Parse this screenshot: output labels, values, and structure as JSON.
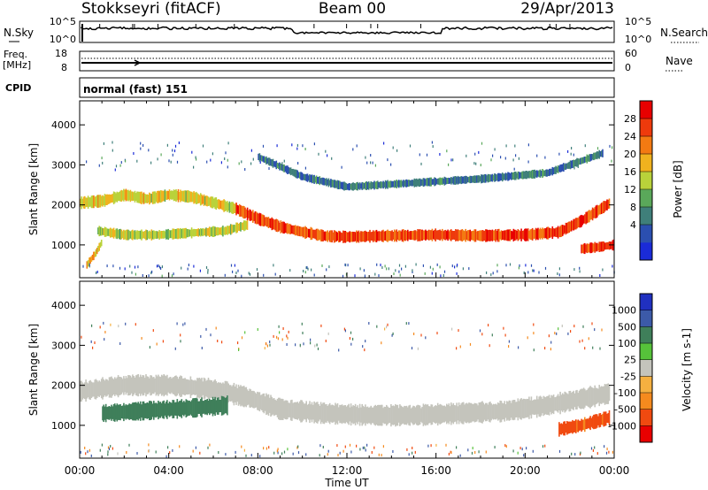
{
  "header": {
    "station": "Stokkseyri (fitACF)",
    "beam": "Beam 00",
    "date": "29/Apr/2013"
  },
  "status_panels": {
    "nsky_label": "N.Sky",
    "nsearch_label": "N.Search",
    "noise_ticks_left": [
      "10^5",
      "10^0"
    ],
    "noise_ticks_right": [
      "10^5",
      "10^0"
    ],
    "freq_label_line1": "Freq.",
    "freq_label_line2": "[MHz]",
    "freq_ticks": [
      "18",
      "8"
    ],
    "nave_label": "Nave",
    "nave_ticks": [
      "60",
      "0"
    ],
    "cpid_label": "CPID",
    "cpid_value": "normal (fast) 151"
  },
  "colors": {
    "power_scale": [
      "#1a2bd8",
      "#2b4fb0",
      "#3f7f7a",
      "#5aa85a",
      "#b9d23a",
      "#f0b21e",
      "#f37a12",
      "#ee3a0c",
      "#e80000"
    ],
    "velocity_scale": [
      "#2030c0",
      "#3c5aa8",
      "#3f7f5a",
      "#56c23a",
      "#c4c4bc",
      "#f5b040",
      "#f58a1e",
      "#f04a10",
      "#e80000"
    ],
    "ground_scatter": "#c4c4bc"
  },
  "chart_data": [
    {
      "type": "heatmap",
      "panel": "power",
      "ylabel": "Slant Range [km]",
      "xlabel": "Time UT",
      "xlim": [
        0,
        24
      ],
      "ylim": [
        180,
        4600
      ],
      "x_tick_labels": [
        "00:00",
        "04:00",
        "08:00",
        "12:00",
        "16:00",
        "20:00",
        "00:00"
      ],
      "y_tick_labels": [
        "1000",
        "2000",
        "3000",
        "4000"
      ],
      "colorbar_label": "Power [dB]",
      "colorbar_tick_labels": [
        "28",
        "24",
        "20",
        "16",
        "12",
        "8",
        "4"
      ],
      "colorbar_range": [
        0,
        32
      ],
      "bands": [
        {
          "t": [
            0.0,
            1.0,
            2.0,
            3.0,
            4.0,
            5.0,
            6.0,
            7.0
          ],
          "center_km": [
            2050,
            2100,
            2250,
            2150,
            2250,
            2200,
            2050,
            1900
          ],
          "width_km": 260,
          "level_db": 18
        },
        {
          "t": [
            0.8,
            2.0,
            3.5,
            5.0,
            6.5,
            7.5
          ],
          "center_km": [
            1350,
            1250,
            1250,
            1300,
            1350,
            1500
          ],
          "width_km": 220,
          "level_db": 16
        },
        {
          "t": [
            7.0,
            8.0,
            9.0,
            10.0,
            11.0,
            12.0,
            14.0,
            16.0,
            18.0,
            20.0,
            21.5,
            22.5,
            23.8
          ],
          "center_km": [
            1900,
            1650,
            1450,
            1320,
            1220,
            1200,
            1230,
            1250,
            1230,
            1250,
            1320,
            1600,
            2050
          ],
          "width_km": 260,
          "level_db": 26
        },
        {
          "t": [
            0.3,
            0.7,
            1.0
          ],
          "center_km": [
            500,
            800,
            1100
          ],
          "width_km": 180,
          "level_db": 20
        },
        {
          "t": [
            22.5,
            23.3,
            24.0
          ],
          "center_km": [
            900,
            950,
            1000
          ],
          "width_km": 220,
          "level_db": 27
        },
        {
          "t": [
            8.0,
            10.0,
            12.0,
            15.0,
            18.0,
            21.0,
            23.5
          ],
          "center_km": [
            3200,
            2700,
            2450,
            2550,
            2650,
            2800,
            3300
          ],
          "width_km": 180,
          "level_db": 8
        }
      ]
    },
    {
      "type": "heatmap",
      "panel": "velocity",
      "ylabel": "Slant Range [km]",
      "xlabel": "Time UT",
      "xlim": [
        0,
        24
      ],
      "ylim": [
        180,
        4600
      ],
      "x_tick_labels": [
        "00:00",
        "04:00",
        "08:00",
        "12:00",
        "16:00",
        "20:00",
        "00:00"
      ],
      "y_tick_labels": [
        "1000",
        "2000",
        "3000",
        "4000"
      ],
      "colorbar_label": "Velocity [m s-1]",
      "colorbar_tick_labels": [
        "1000",
        "500",
        "100",
        "25",
        "-25",
        "-100",
        "-500",
        "-1000"
      ],
      "bands": [
        {
          "t": [
            0.0,
            2.0,
            4.0,
            6.0,
            7.5,
            9.0,
            11.0,
            13.0,
            15.0,
            17.0,
            19.0,
            21.0,
            23.8
          ],
          "center_km": [
            1850,
            2000,
            2000,
            1900,
            1700,
            1400,
            1300,
            1250,
            1250,
            1300,
            1350,
            1500,
            1800
          ],
          "width_km": 450,
          "velocity": 0
        },
        {
          "t": [
            1.0,
            2.5,
            4.0,
            5.5,
            6.6
          ],
          "center_km": [
            1300,
            1350,
            1400,
            1450,
            1500
          ],
          "width_km": 400,
          "velocity": 200
        },
        {
          "t": [
            21.5,
            22.5,
            23.8
          ],
          "center_km": [
            900,
            1000,
            1200
          ],
          "width_km": 300,
          "velocity": -400
        }
      ]
    }
  ]
}
